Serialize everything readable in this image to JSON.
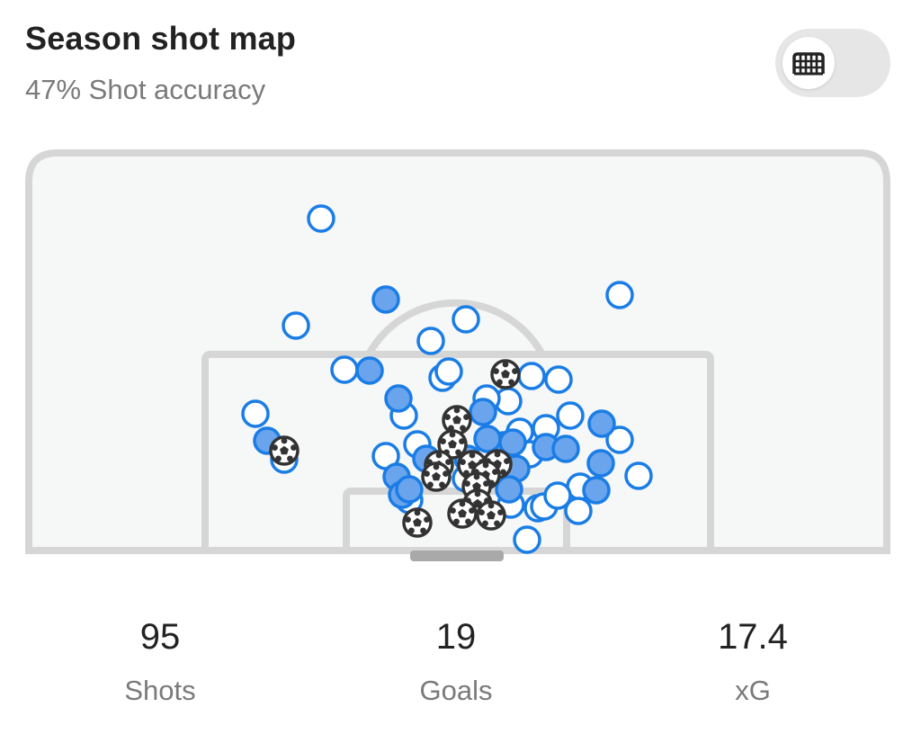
{
  "header": {
    "title": "Season shot map",
    "subtitle": "47% Shot accuracy"
  },
  "toggle": {
    "icon": "goal-net-icon",
    "state": "off"
  },
  "colors": {
    "shot_blue": "#1a7de6",
    "on_target_fill": "#6aa4ec",
    "goal_dark": "#333333",
    "pitch_bg": "#f6f7f7",
    "pitch_lines": "#d6d6d6",
    "goal_mouth": "#a9a9a9"
  },
  "stats": [
    {
      "value": "95",
      "label": "Shots"
    },
    {
      "value": "19",
      "label": "Goals"
    },
    {
      "value": "17.4",
      "label": "xG"
    }
  ],
  "legend_kinds": [
    "missed",
    "on-target",
    "goal"
  ]
}
